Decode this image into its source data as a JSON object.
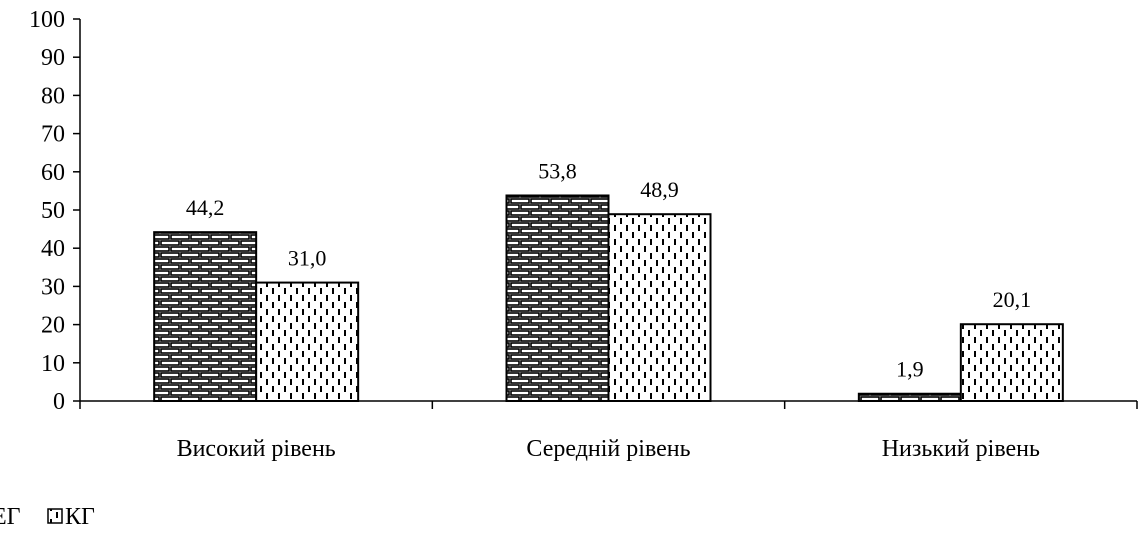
{
  "chart_data": {
    "type": "bar",
    "categories": [
      "Високий рівень",
      "Середній  рівень",
      "Низький рівень"
    ],
    "series": [
      {
        "name": "ЕГ",
        "values": [
          44.2,
          53.8,
          1.9
        ],
        "labels": [
          "44,2",
          "53,8",
          "1,9"
        ],
        "pattern": "brick"
      },
      {
        "name": "КГ",
        "values": [
          31.0,
          48.9,
          20.1
        ],
        "labels": [
          "31,0",
          "48,9",
          "20,1"
        ],
        "pattern": "dashes"
      }
    ],
    "ylim": [
      0,
      100
    ],
    "yticks": [
      "0",
      "10",
      "20",
      "30",
      "40",
      "50",
      "60",
      "70",
      "80",
      "90",
      "100"
    ],
    "ytick_values": [
      0,
      10,
      20,
      30,
      40,
      50,
      60,
      70,
      80,
      90,
      100
    ],
    "grid": false,
    "legend_position": "bottom-left",
    "colors": {
      "stroke": "#000000",
      "fill": "#ffffff"
    }
  }
}
